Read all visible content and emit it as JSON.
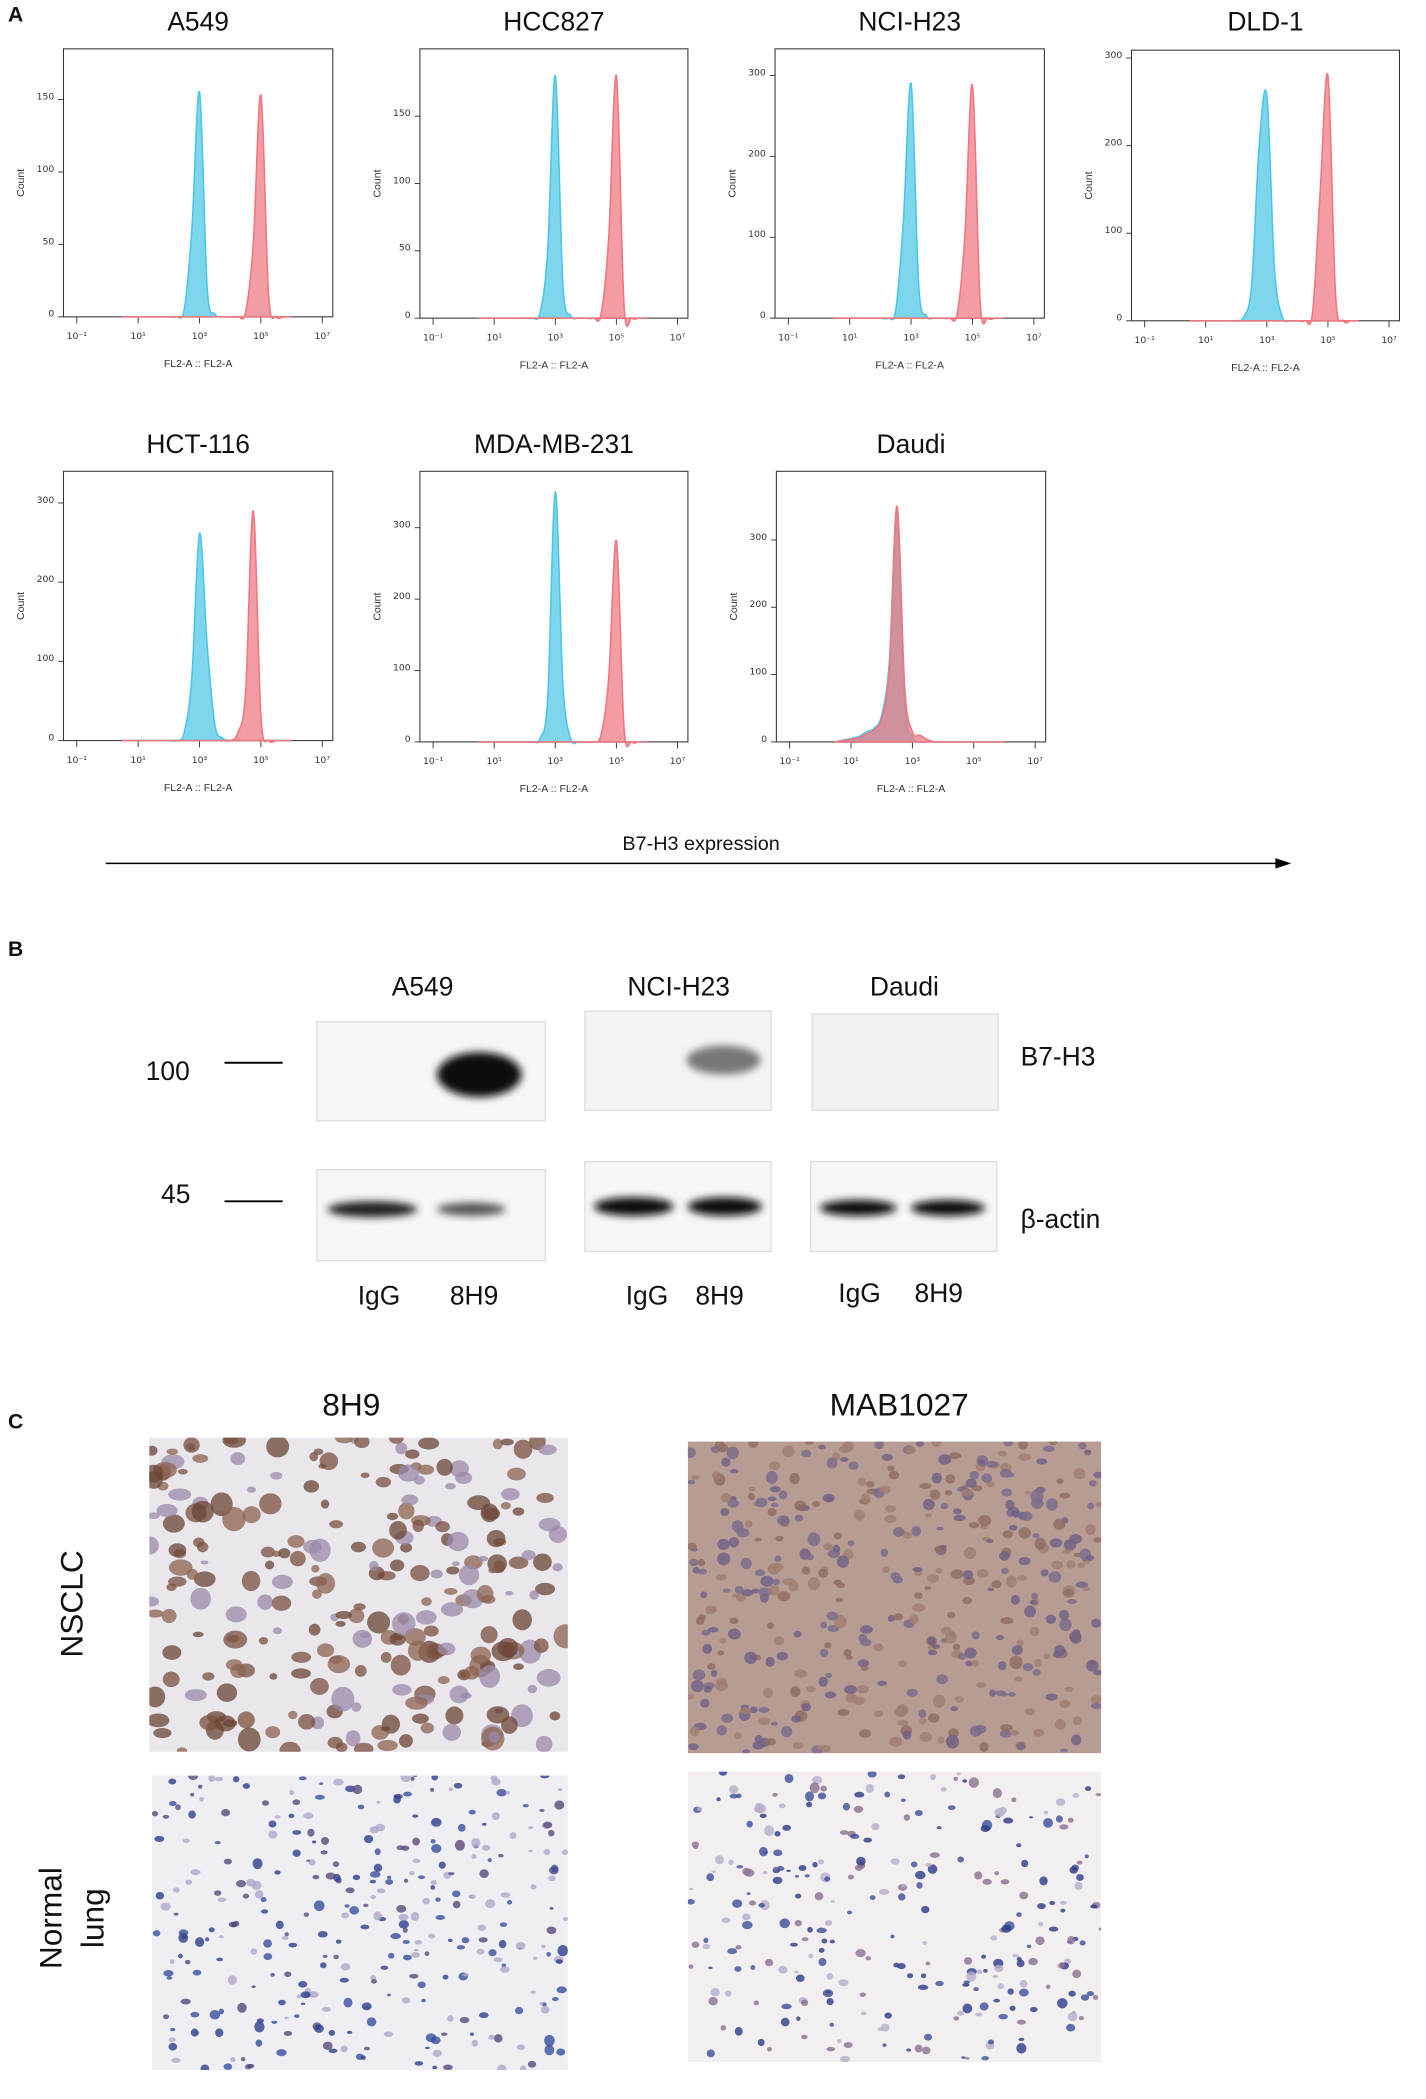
{
  "panel_labels": [
    "A",
    "B",
    "C"
  ],
  "chart_data": [
    {
      "type": "area",
      "title": "A549",
      "x_label": "FL2-A :: FL2-A",
      "y_label": "Count",
      "xscale": "log",
      "x": [
        3,
        6,
        10,
        18,
        32,
        56,
        100,
        178,
        316,
        562,
        1000,
        1778,
        3162,
        5623,
        10000,
        17783,
        31623,
        56234,
        100000,
        177828,
        316228,
        562341,
        1000000
      ],
      "xlim": [
        0.037,
        22000000
      ],
      "xticks": [
        {
          "value": 0.1,
          "label": "10⁻¹"
        },
        {
          "value": 10,
          "label": "10¹"
        },
        {
          "value": 1000,
          "label": "10³"
        },
        {
          "value": 100000,
          "label": "10⁵"
        },
        {
          "value": 10000000,
          "label": "10⁷"
        }
      ],
      "ylim": [
        0,
        185
      ],
      "yticks": [
        0,
        50,
        100,
        150
      ],
      "series": [
        {
          "color": "#4cc6e6",
          "values": [
            0,
            0,
            0,
            0,
            0,
            0,
            0,
            0,
            5,
            60,
            155,
            20,
            2,
            0,
            0,
            0,
            0,
            0,
            0,
            0,
            0,
            0,
            0
          ]
        },
        {
          "color": "#f0767f",
          "values": [
            0,
            0,
            0,
            0,
            0,
            0,
            0,
            0,
            0,
            0,
            0,
            0,
            0,
            0,
            0,
            0,
            3,
            50,
            153,
            15,
            0,
            0,
            0
          ]
        }
      ]
    },
    {
      "type": "area",
      "title": "HCC827",
      "x_label": "FL2-A :: FL2-A",
      "y_label": "Count",
      "xscale": "log",
      "x": [
        3,
        6,
        10,
        18,
        32,
        56,
        100,
        178,
        316,
        562,
        1000,
        1778,
        3162,
        5623,
        10000,
        17783,
        31623,
        56234,
        100000,
        177828,
        316228,
        562341,
        1000000
      ],
      "xlim": [
        0.037,
        22000000
      ],
      "xticks": [
        {
          "value": 0.1,
          "label": "10⁻¹"
        },
        {
          "value": 10,
          "label": "10¹"
        },
        {
          "value": 1000,
          "label": "10³"
        },
        {
          "value": 100000,
          "label": "10⁵"
        },
        {
          "value": 10000000,
          "label": "10⁷"
        }
      ],
      "ylim": [
        0,
        200
      ],
      "yticks": [
        0,
        50,
        100,
        150
      ],
      "series": [
        {
          "color": "#4cc6e6",
          "values": [
            0,
            0,
            0,
            0,
            0,
            0,
            0,
            0,
            4,
            50,
            180,
            25,
            2,
            0,
            0,
            0,
            0,
            0,
            0,
            0,
            0,
            0,
            0
          ]
        },
        {
          "color": "#f0767f",
          "values": [
            0,
            0,
            0,
            0,
            0,
            0,
            0,
            0,
            0,
            0,
            0,
            0,
            0,
            0,
            0,
            0,
            3,
            60,
            180,
            10,
            0,
            0,
            0
          ]
        }
      ]
    },
    {
      "type": "area",
      "title": "NCI-H23",
      "x_label": "FL2-A :: FL2-A",
      "y_label": "Count",
      "xscale": "log",
      "x": [
        3,
        6,
        10,
        18,
        32,
        56,
        100,
        178,
        316,
        562,
        1000,
        1778,
        3162,
        5623,
        10000,
        17783,
        31623,
        56234,
        100000,
        177828,
        316228,
        562341,
        1000000
      ],
      "xlim": [
        0.037,
        22000000
      ],
      "xticks": [
        {
          "value": 0.1,
          "label": "10⁻¹"
        },
        {
          "value": 10,
          "label": "10¹"
        },
        {
          "value": 1000,
          "label": "10³"
        },
        {
          "value": 100000,
          "label": "10⁵"
        },
        {
          "value": 10000000,
          "label": "10⁷"
        }
      ],
      "ylim": [
        0,
        333
      ],
      "yticks": [
        0,
        100,
        200,
        300
      ],
      "series": [
        {
          "color": "#4cc6e6",
          "values": [
            0,
            0,
            0,
            0,
            0,
            0,
            0,
            0,
            10,
            120,
            290,
            40,
            3,
            0,
            0,
            0,
            0,
            0,
            0,
            0,
            0,
            0,
            0
          ]
        },
        {
          "color": "#f0767f",
          "values": [
            0,
            0,
            0,
            0,
            0,
            0,
            0,
            0,
            0,
            0,
            0,
            0,
            0,
            0,
            0,
            0,
            5,
            100,
            288,
            20,
            0,
            0,
            0
          ]
        }
      ]
    },
    {
      "type": "area",
      "title": "DLD-1",
      "x_label": "FL2-A :: FL2-A",
      "y_label": "Count",
      "xscale": "log",
      "x": [
        3,
        6,
        10,
        18,
        32,
        56,
        100,
        178,
        316,
        562,
        1000,
        1778,
        3162,
        5623,
        10000,
        17783,
        31623,
        56234,
        100000,
        177828,
        316228,
        562341,
        1000000
      ],
      "xlim": [
        0.037,
        22000000
      ],
      "xticks": [
        {
          "value": 0.1,
          "label": "10⁻¹"
        },
        {
          "value": 10,
          "label": "10¹"
        },
        {
          "value": 1000,
          "label": "10³"
        },
        {
          "value": 100000,
          "label": "10⁵"
        },
        {
          "value": 10000000,
          "label": "10⁷"
        }
      ],
      "ylim": [
        0,
        309
      ],
      "yticks": [
        0,
        100,
        200,
        300
      ],
      "series": [
        {
          "color": "#4cc6e6",
          "values": [
            0,
            0,
            0,
            0,
            0,
            0,
            0,
            5,
            40,
            200,
            257,
            60,
            5,
            0,
            0,
            0,
            0,
            0,
            0,
            0,
            0,
            0,
            0
          ]
        },
        {
          "color": "#f0767f",
          "values": [
            0,
            0,
            0,
            0,
            0,
            0,
            0,
            0,
            0,
            0,
            0,
            0,
            0,
            0,
            0,
            0,
            10,
            150,
            280,
            30,
            0,
            0,
            0
          ]
        }
      ]
    },
    {
      "type": "area",
      "title": "HCT-116",
      "x_label": "FL2-A :: FL2-A",
      "y_label": "Count",
      "xscale": "log",
      "x": [
        3,
        6,
        10,
        18,
        32,
        56,
        100,
        178,
        316,
        562,
        1000,
        1778,
        3162,
        5623,
        10000,
        17783,
        31623,
        56234,
        100000,
        177828,
        316228,
        562341,
        1000000
      ],
      "xlim": [
        0.037,
        22000000
      ],
      "xticks": [
        {
          "value": 0.1,
          "label": "10⁻¹"
        },
        {
          "value": 10,
          "label": "10¹"
        },
        {
          "value": 1000,
          "label": "10³"
        },
        {
          "value": 100000,
          "label": "10⁵"
        },
        {
          "value": 10000000,
          "label": "10⁷"
        }
      ],
      "ylim": [
        0,
        340
      ],
      "yticks": [
        0,
        100,
        200,
        300
      ],
      "series": [
        {
          "color": "#4cc6e6",
          "values": [
            0,
            0,
            0,
            0,
            0,
            0,
            0,
            0,
            10,
            80,
            262,
            120,
            20,
            3,
            0,
            0,
            0,
            0,
            0,
            0,
            0,
            0,
            0
          ]
        },
        {
          "color": "#f0767f",
          "values": [
            0,
            0,
            0,
            0,
            0,
            0,
            0,
            0,
            0,
            0,
            0,
            0,
            0,
            0,
            0,
            10,
            60,
            290,
            30,
            0,
            0,
            0,
            0
          ]
        }
      ]
    },
    {
      "type": "area",
      "title": "MDA-MB-231",
      "x_label": "FL2-A :: FL2-A",
      "y_label": "Count",
      "xscale": "log",
      "x": [
        3,
        6,
        10,
        18,
        32,
        56,
        100,
        178,
        316,
        562,
        1000,
        1778,
        3162,
        5623,
        10000,
        17783,
        31623,
        56234,
        100000,
        177828,
        316228,
        562341,
        1000000
      ],
      "xlim": [
        0.037,
        22000000
      ],
      "xticks": [
        {
          "value": 0.1,
          "label": "10⁻¹"
        },
        {
          "value": 10,
          "label": "10¹"
        },
        {
          "value": 1000,
          "label": "10³"
        },
        {
          "value": 100000,
          "label": "10⁵"
        },
        {
          "value": 10000000,
          "label": "10⁷"
        }
      ],
      "ylim": [
        0,
        379
      ],
      "yticks": [
        0,
        100,
        200,
        300
      ],
      "series": [
        {
          "color": "#4cc6e6",
          "values": [
            0,
            0,
            0,
            0,
            0,
            0,
            0,
            0,
            5,
            60,
            350,
            80,
            5,
            0,
            0,
            0,
            0,
            0,
            0,
            0,
            0,
            0,
            0
          ]
        },
        {
          "color": "#f0767f",
          "values": [
            0,
            0,
            0,
            0,
            0,
            0,
            0,
            0,
            0,
            0,
            0,
            0,
            0,
            0,
            0,
            0,
            10,
            90,
            282,
            20,
            0,
            0,
            0
          ]
        }
      ]
    },
    {
      "type": "area",
      "title": "Daudi",
      "x_label": "FL2-A :: FL2-A",
      "y_label": "Count",
      "xscale": "log",
      "x": [
        3,
        6,
        10,
        18,
        32,
        56,
        100,
        178,
        316,
        562,
        1000,
        1778,
        3162,
        5623,
        10000,
        17783,
        31623,
        56234,
        100000,
        177828,
        316228,
        562341,
        1000000
      ],
      "xlim": [
        0.037,
        22000000
      ],
      "xticks": [
        {
          "value": 0.1,
          "label": "10⁻¹"
        },
        {
          "value": 10,
          "label": "10¹"
        },
        {
          "value": 1000,
          "label": "10³"
        },
        {
          "value": 100000,
          "label": "10⁵"
        },
        {
          "value": 10000000,
          "label": "10⁷"
        }
      ],
      "ylim": [
        0,
        402
      ],
      "yticks": [
        0,
        100,
        200,
        300
      ],
      "series": [
        {
          "color": "#4cc6e6",
          "values": [
            0,
            3,
            5,
            8,
            15,
            20,
            40,
            120,
            345,
            60,
            8,
            0,
            0,
            0,
            0,
            0,
            0,
            0,
            0,
            0,
            0,
            0,
            0
          ]
        },
        {
          "color": "#f0767f",
          "values": [
            0,
            2,
            4,
            6,
            12,
            18,
            35,
            110,
            350,
            80,
            15,
            10,
            3,
            0,
            0,
            0,
            0,
            0,
            0,
            0,
            0,
            0,
            0
          ]
        }
      ]
    }
  ],
  "panel_a": {
    "arrow_label": "B7-H3 expression"
  },
  "panel_b": {
    "cell_lines": [
      "A549",
      "NCI-H23",
      "Daudi"
    ],
    "markers": [
      100,
      45
    ],
    "proteins": [
      "B7-H3",
      "β-actin"
    ],
    "lanes": [
      [
        "IgG",
        "8H9"
      ],
      [
        "IgG",
        "8H9"
      ],
      [
        "IgG",
        "8H9"
      ]
    ]
  },
  "panel_c": {
    "antibodies": [
      "8H9",
      "MAB1027"
    ],
    "tissues": [
      [
        "NSCLC"
      ],
      [
        "Normal",
        "lung"
      ]
    ]
  }
}
